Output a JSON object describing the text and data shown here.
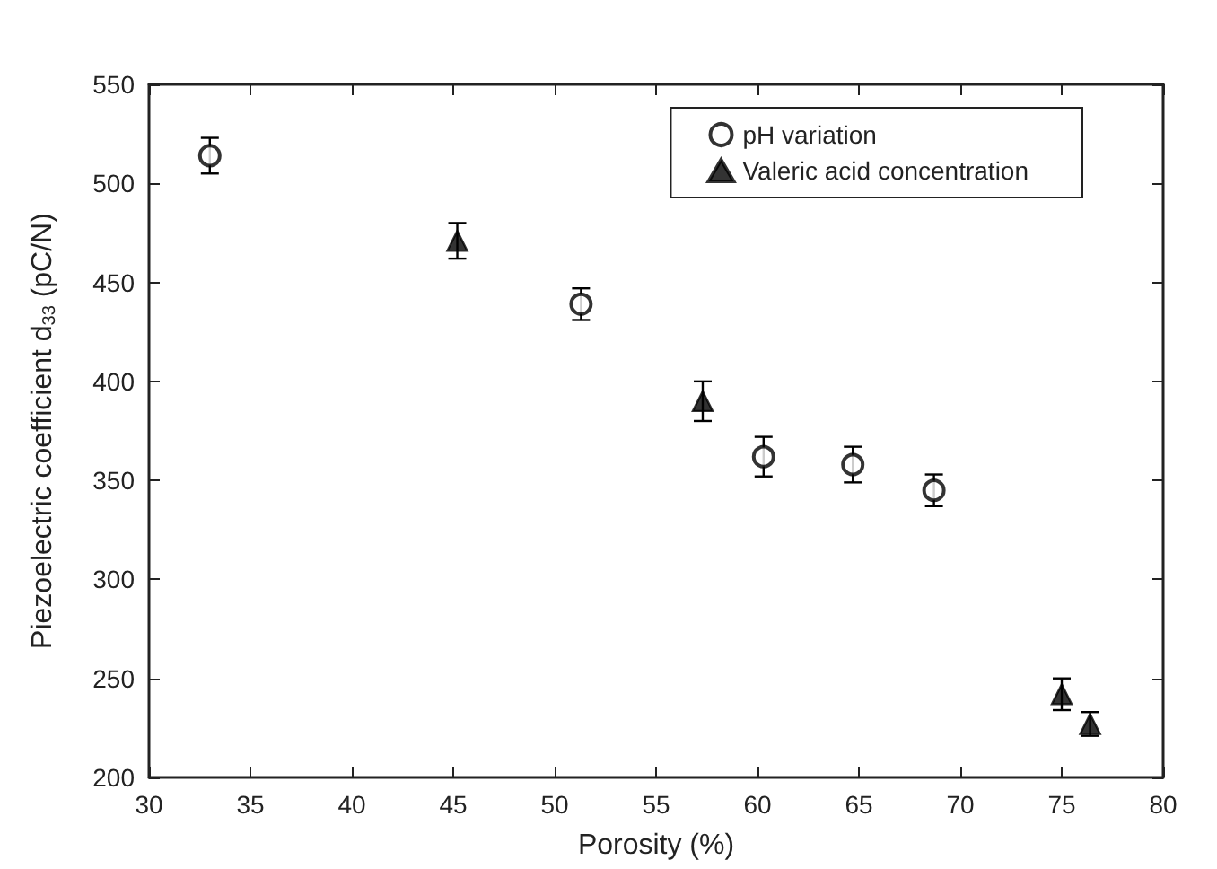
{
  "chart_data": {
    "type": "scatter",
    "xlabel": "Porosity (%)",
    "ylabel": "Piezoelectric coefficient d$_{33}$ (pC/N)",
    "xlim": [
      30,
      80
    ],
    "xticks": [
      30,
      35,
      40,
      45,
      50,
      55,
      60,
      65,
      70,
      75,
      80
    ],
    "ylim": [
      200,
      550
    ],
    "yticks": [
      200,
      250,
      300,
      350,
      400,
      450,
      500,
      550
    ],
    "legend": "top right",
    "grid": false,
    "series": [
      {
        "name": "pH variation",
        "color": "#000000",
        "marker": "circle",
        "x": [
          33.0,
          51.3,
          60.3,
          64.7,
          68.7
        ],
        "values": [
          514,
          439,
          362,
          358,
          345
        ],
        "errors": [
          9,
          8,
          10,
          9,
          8
        ]
      },
      {
        "name": "Valeric acid concentration",
        "color": "#000000",
        "marker": "triangle",
        "x": [
          45.2,
          57.3,
          75.0,
          76.4
        ],
        "values": [
          471,
          390,
          242,
          227
        ],
        "errors": [
          9,
          10,
          8,
          6
        ]
      }
    ]
  }
}
